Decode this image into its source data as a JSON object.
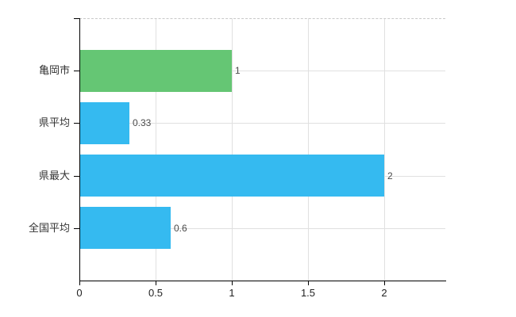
{
  "chart_data": {
    "type": "bar",
    "orientation": "horizontal",
    "title": "",
    "xlabel": "",
    "ylabel": "",
    "categories": [
      "亀岡市",
      "県平均",
      "県最大",
      "全国平均"
    ],
    "values": [
      1,
      0.33,
      2,
      0.6
    ],
    "value_labels": [
      "1",
      "0.33",
      "2",
      "0.6"
    ],
    "bar_colors": [
      "#65c674",
      "#35baf0",
      "#35baf0",
      "#35baf0"
    ],
    "x_ticks": [
      0,
      0.5,
      1,
      1.5,
      2
    ],
    "x_tick_labels": [
      "0",
      "0.5",
      "1",
      "1.5",
      "2"
    ],
    "xlim": [
      0,
      2.4
    ],
    "grid": true,
    "legend": "none",
    "colors": {
      "background": "#ffffff",
      "axis": "#000000",
      "grid": "#e0e0e0",
      "top_border": "#c8c8c8",
      "category_label": "#333333",
      "tick_label": "#222222",
      "value_label": "#4a4a4a"
    }
  }
}
